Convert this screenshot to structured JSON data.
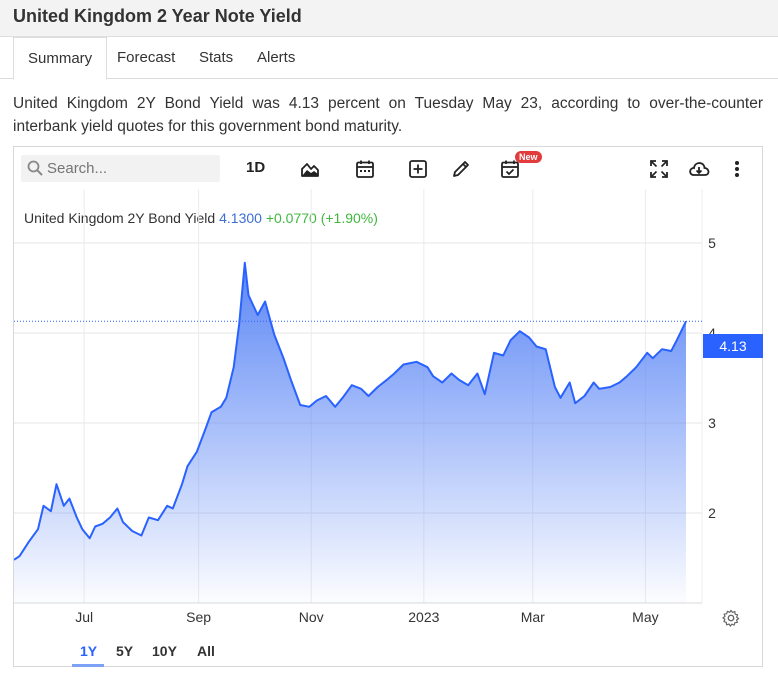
{
  "page": {
    "title": "United Kingdom 2 Year Note Yield"
  },
  "tabs": [
    {
      "label": "Summary",
      "active": true
    },
    {
      "label": "Forecast",
      "active": false
    },
    {
      "label": "Stats",
      "active": false
    },
    {
      "label": "Alerts",
      "active": false
    }
  ],
  "description": "United Kingdom 2Y Bond Yield was 4.13 percent on Tuesday May 23, according to over-the-counter interbank yield quotes for this government bond maturity.",
  "toolbar": {
    "search_placeholder": "Search...",
    "interval_label": "1D",
    "new_badge": "New",
    "icons": [
      "search-icon",
      "mountain-chart-icon",
      "calendar-icon",
      "add-box-icon",
      "pencil-icon",
      "calendar-check-icon",
      "fullscreen-icon",
      "cloud-download-icon",
      "more-vert-icon"
    ]
  },
  "legend": {
    "name": "United Kingdom 2Y Bond Yield",
    "value": "4.1300",
    "change": "+0.0770 (+1.90%)"
  },
  "price_tag": "4.13",
  "range_buttons": [
    {
      "label": "1Y",
      "active": true
    },
    {
      "label": "5Y",
      "active": false
    },
    {
      "label": "10Y",
      "active": false
    },
    {
      "label": "All",
      "active": false
    }
  ],
  "colors": {
    "line": "#2962ff",
    "fill_top": "#5b86f5",
    "legend_value": "#3d6fd6",
    "legend_change": "#3fb83f",
    "price_tag": "#2962ff"
  },
  "chart_data": {
    "type": "area",
    "title": "United Kingdom 2Y Bond Yield",
    "x_tick_labels": [
      "Jul",
      "Sep",
      "Nov",
      "2023",
      "Mar",
      "May"
    ],
    "y_tick_labels": [
      "2",
      "3",
      "4",
      "5"
    ],
    "ylim": [
      1.0,
      5.6
    ],
    "grid": true,
    "last_value": 4.13,
    "series": [
      {
        "name": "United Kingdom 2Y Bond Yield",
        "x": [
          "2022-05-24",
          "2022-05-27",
          "2022-06-01",
          "2022-06-06",
          "2022-06-09",
          "2022-06-13",
          "2022-06-16",
          "2022-06-20",
          "2022-06-23",
          "2022-06-27",
          "2022-06-30",
          "2022-07-04",
          "2022-07-07",
          "2022-07-11",
          "2022-07-15",
          "2022-07-19",
          "2022-07-22",
          "2022-07-27",
          "2022-08-01",
          "2022-08-05",
          "2022-08-10",
          "2022-08-15",
          "2022-08-18",
          "2022-08-23",
          "2022-08-26",
          "2022-08-31",
          "2022-09-05",
          "2022-09-08",
          "2022-09-13",
          "2022-09-16",
          "2022-09-20",
          "2022-09-23",
          "2022-09-26",
          "2022-09-28",
          "2022-10-03",
          "2022-10-07",
          "2022-10-12",
          "2022-10-17",
          "2022-10-21",
          "2022-10-26",
          "2022-10-31",
          "2022-11-04",
          "2022-11-09",
          "2022-11-14",
          "2022-11-18",
          "2022-11-23",
          "2022-11-28",
          "2022-12-02",
          "2022-12-07",
          "2022-12-12",
          "2022-12-16",
          "2022-12-21",
          "2022-12-28",
          "2023-01-03",
          "2023-01-06",
          "2023-01-11",
          "2023-01-16",
          "2023-01-20",
          "2023-01-25",
          "2023-01-30",
          "2023-02-03",
          "2023-02-08",
          "2023-02-13",
          "2023-02-17",
          "2023-02-22",
          "2023-02-27",
          "2023-03-03",
          "2023-03-08",
          "2023-03-13",
          "2023-03-16",
          "2023-03-21",
          "2023-03-24",
          "2023-03-29",
          "2023-04-03",
          "2023-04-06",
          "2023-04-12",
          "2023-04-17",
          "2023-04-21",
          "2023-04-26",
          "2023-05-02",
          "2023-05-05",
          "2023-05-10",
          "2023-05-15",
          "2023-05-18",
          "2023-05-23"
        ],
        "y": [
          1.48,
          1.52,
          1.68,
          1.82,
          2.08,
          2.02,
          2.32,
          2.08,
          2.16,
          1.95,
          1.82,
          1.72,
          1.85,
          1.88,
          1.95,
          2.05,
          1.9,
          1.8,
          1.75,
          1.95,
          1.92,
          2.08,
          2.05,
          2.32,
          2.52,
          2.68,
          2.95,
          3.12,
          3.18,
          3.28,
          3.62,
          4.1,
          4.78,
          4.42,
          4.2,
          4.35,
          3.98,
          3.72,
          3.48,
          3.2,
          3.18,
          3.25,
          3.3,
          3.18,
          3.28,
          3.42,
          3.38,
          3.3,
          3.4,
          3.48,
          3.55,
          3.65,
          3.68,
          3.62,
          3.52,
          3.45,
          3.55,
          3.48,
          3.42,
          3.55,
          3.32,
          3.78,
          3.75,
          3.92,
          4.02,
          3.95,
          3.85,
          3.82,
          3.4,
          3.28,
          3.45,
          3.22,
          3.3,
          3.45,
          3.38,
          3.4,
          3.45,
          3.52,
          3.62,
          3.78,
          3.72,
          3.82,
          3.8,
          3.92,
          4.13
        ]
      }
    ]
  }
}
